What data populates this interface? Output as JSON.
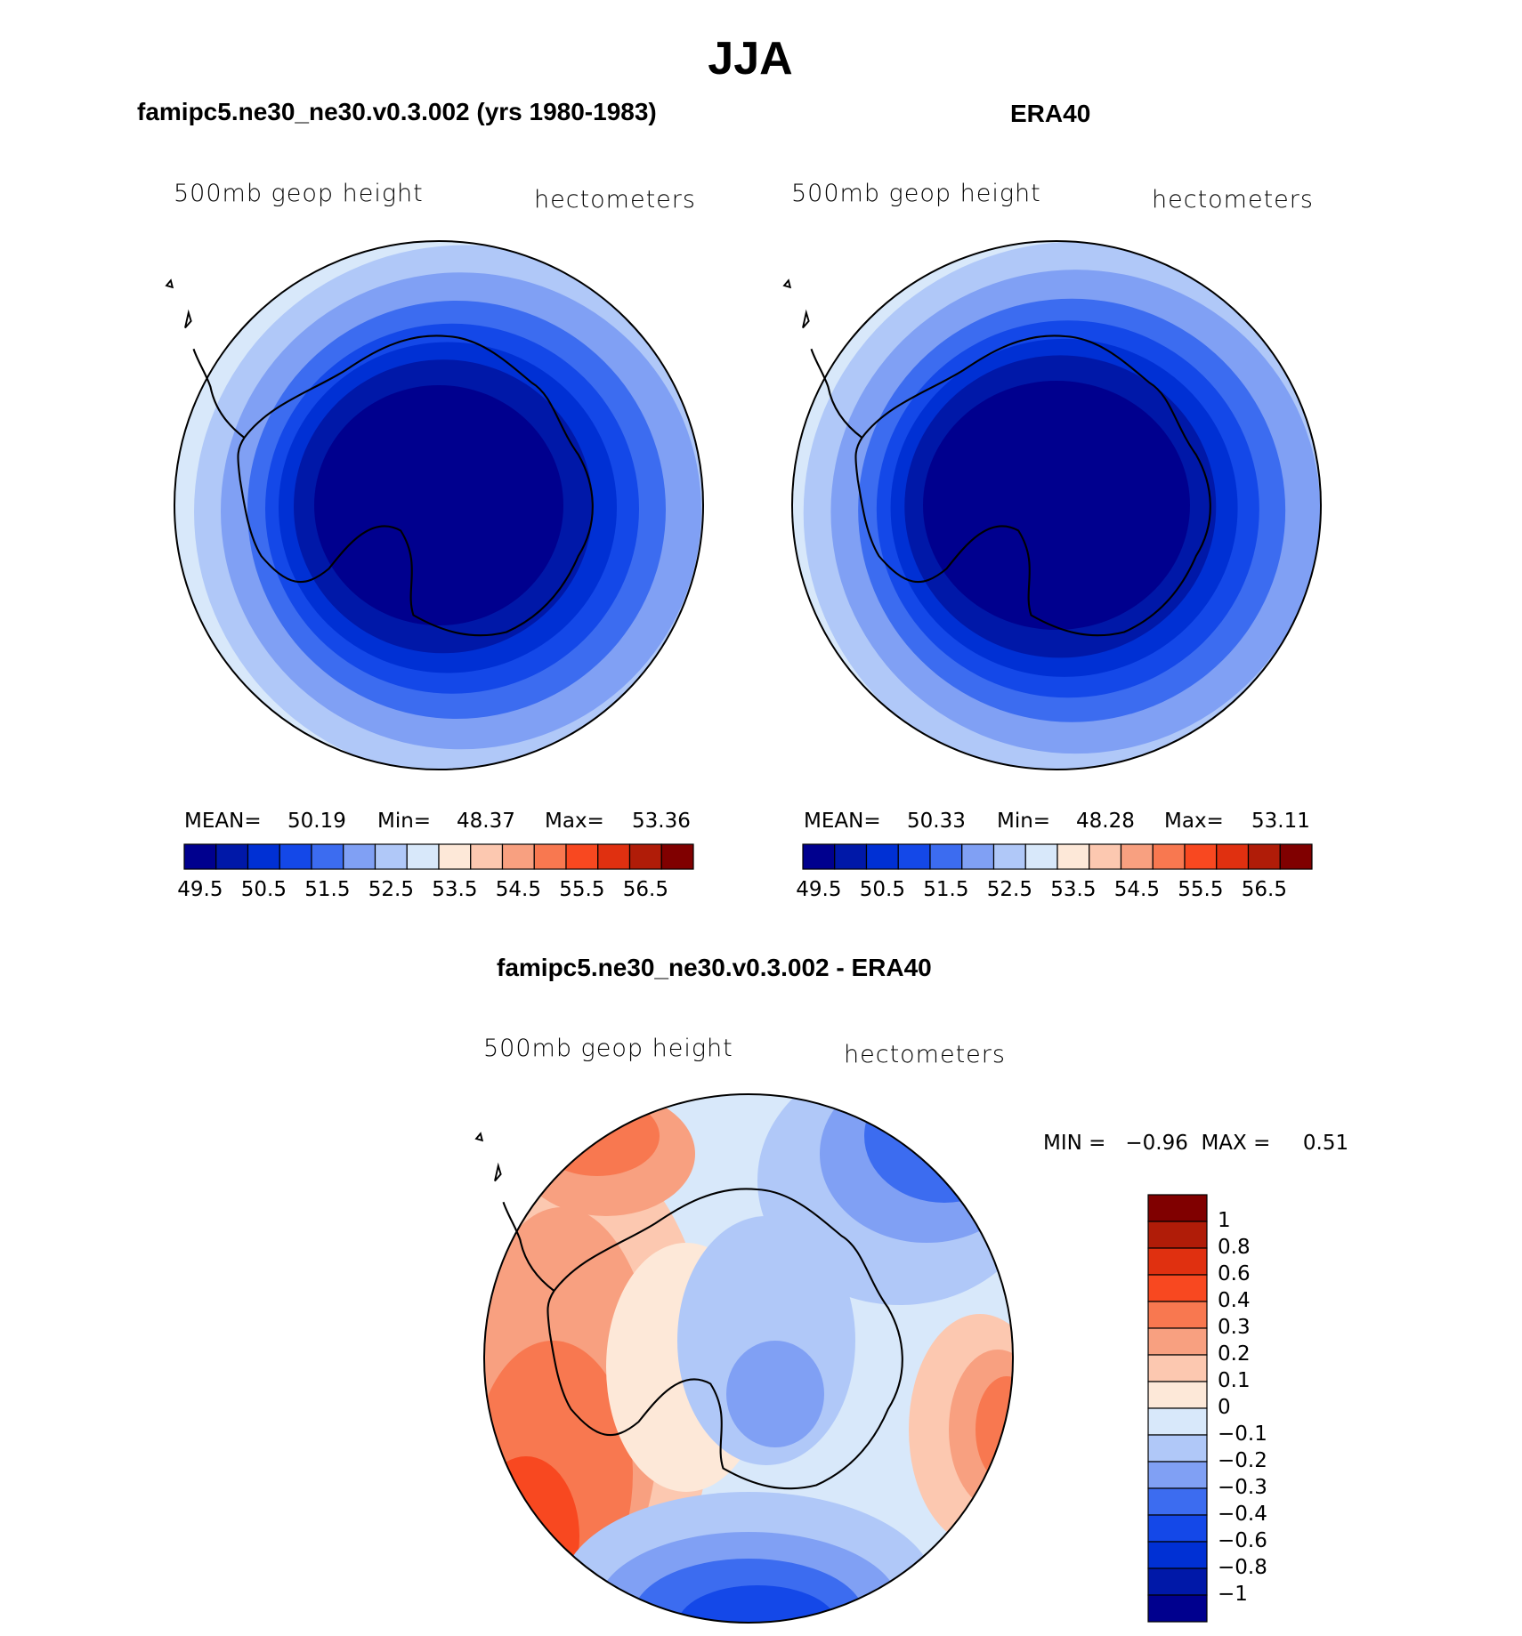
{
  "title": "JJA",
  "colors": {
    "sequential": [
      "#00008e",
      "#0018a8",
      "#0030d4",
      "#1448e8",
      "#3c6cf0",
      "#80a0f4",
      "#b0c8f8",
      "#d8e8fa",
      "#fde8d8",
      "#fcc8b0",
      "#f8a080",
      "#f87850",
      "#f84820",
      "#e03010",
      "#b01c08",
      "#800000"
    ],
    "diff": [
      "#00008e",
      "#0018a8",
      "#0030d4",
      "#1448e8",
      "#3c6cf0",
      "#80a0f4",
      "#b0c8f8",
      "#d8e8fa",
      "#fde8d8",
      "#fcc8b0",
      "#f8a080",
      "#f87850",
      "#f84820",
      "#e03010",
      "#b01c08",
      "#800000"
    ],
    "coast": "#000000"
  },
  "panels": [
    {
      "title": "famipc5.ne30_ne30.v0.3.002 (yrs 1980-1983)",
      "left_label": "500mb  geop  height",
      "right_label": "hectometers",
      "stats": {
        "mean_label": "MEAN=",
        "mean": "50.19",
        "min_label": "Min=",
        "min": "48.37",
        "max_label": "Max=",
        "max": "53.36"
      }
    },
    {
      "title": "ERA40",
      "left_label": "500mb  geop  height",
      "right_label": "hectometers",
      "stats": {
        "mean_label": "MEAN=",
        "mean": "50.33",
        "min_label": "Min=",
        "min": "48.28",
        "max_label": "Max=",
        "max": "53.11"
      }
    }
  ],
  "colorbar_ticks": [
    "49.5",
    "50.5",
    "51.5",
    "52.5",
    "53.5",
    "54.5",
    "55.5",
    "56.5"
  ],
  "diff_panel": {
    "title": "famipc5.ne30_ne30.v0.3.002 - ERA40",
    "left_label": "500mb  geop  height",
    "right_label": "hectometers",
    "minmax": "MIN =   −0.96  MAX =     0.51",
    "colorbar_ticks": [
      "1",
      "0.8",
      "0.6",
      "0.4",
      "0.3",
      "0.2",
      "0.1",
      "0",
      "−0.1",
      "−0.2",
      "−0.3",
      "−0.4",
      "−0.6",
      "−0.8",
      "−1"
    ]
  }
}
